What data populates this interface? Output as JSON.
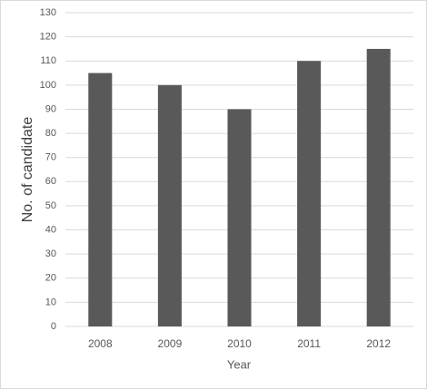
{
  "chart_data": {
    "type": "bar",
    "x_label": "Year",
    "y_label": "No. of candidate",
    "categories": [
      "2008",
      "2009",
      "2010",
      "2011",
      "2012"
    ],
    "values": [
      105,
      100,
      90,
      110,
      115
    ],
    "color": "#595959",
    "ylim": [
      0,
      130
    ],
    "yticks": [
      0,
      10,
      20,
      30,
      40,
      50,
      60,
      70,
      80,
      90,
      100,
      110,
      120,
      130
    ],
    "grid": true
  }
}
